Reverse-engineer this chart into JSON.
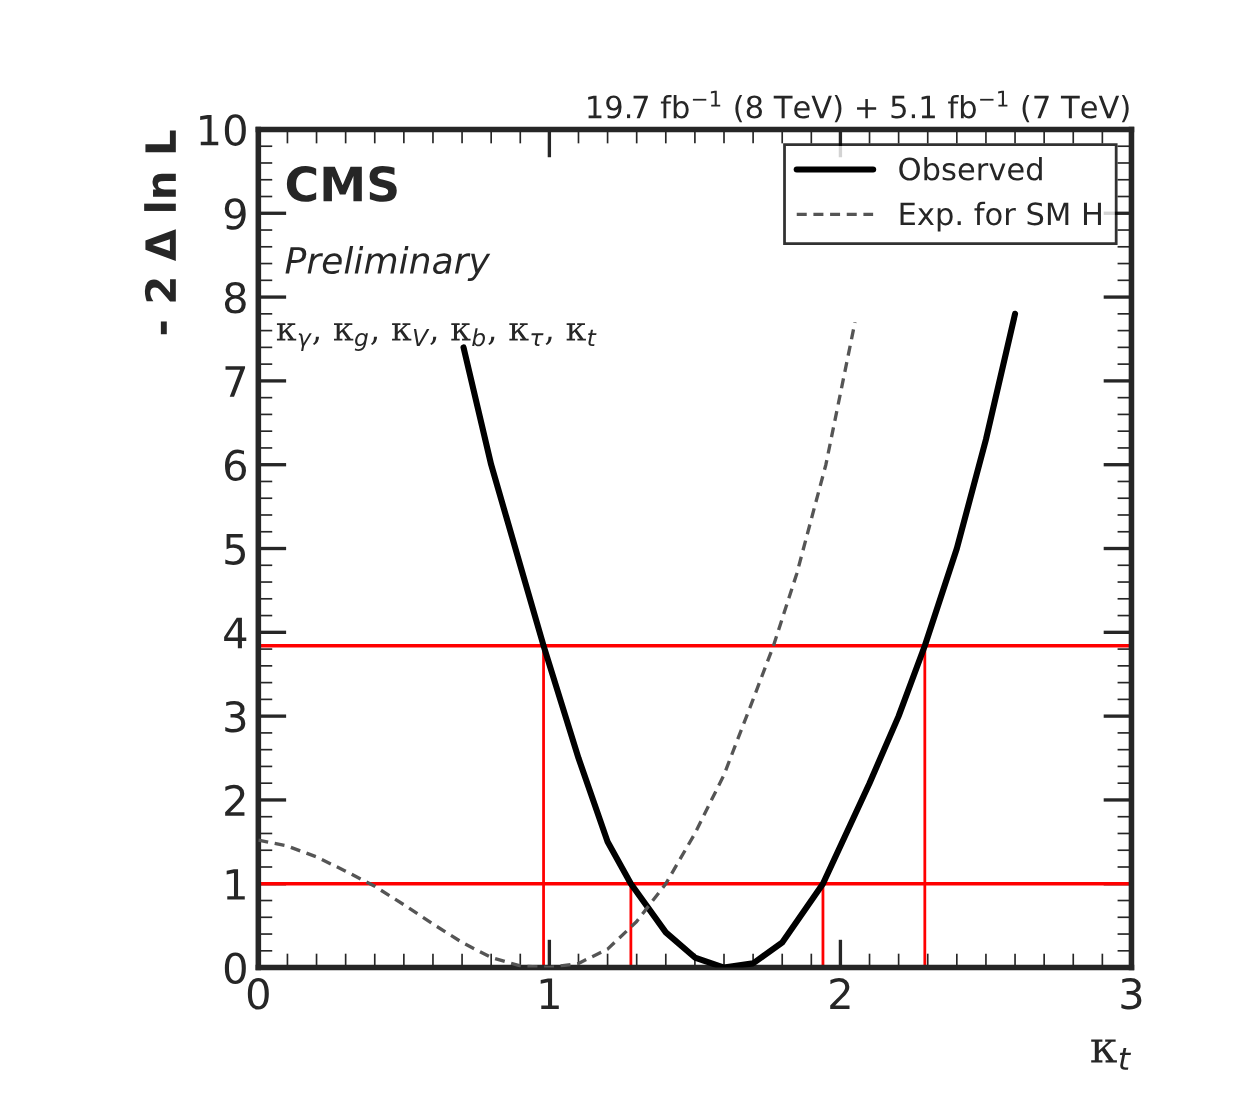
{
  "chart_data": {
    "type": "line",
    "title": "19.7 fb$^{−1}$ (8 TeV) + 5.1 fb$^{−1}$ (7 TeV)",
    "xlabel": "κ$_{t}$",
    "ylabel": "- 2 Δ ln L",
    "annotations": [
      "CMS",
      "Preliminary",
      "κ$_{γ}$, κ$_{g}$, κ$_{V}$, κ$_{b}$, κ$_{τ}$, κ$_{t}$"
    ],
    "series": [
      {
        "name": "Observed",
        "color": "#000000",
        "line_style": "solid",
        "x": [
          0.705,
          0.8,
          0.9,
          0.98,
          1.1,
          1.2,
          1.28,
          1.4,
          1.5,
          1.6,
          1.7,
          1.8,
          1.94,
          2.1,
          2.2,
          2.29,
          2.4,
          2.5,
          2.6
        ],
        "values": [
          7.4,
          6.0,
          4.8,
          3.84,
          2.5,
          1.5,
          1.0,
          0.42,
          0.12,
          0.0,
          0.05,
          0.3,
          1.0,
          2.2,
          3.0,
          3.84,
          5.0,
          6.3,
          7.8
        ]
      },
      {
        "name": "Exp. for SM H",
        "color": "#555555",
        "line_style": "dashed",
        "x": [
          0,
          0.1,
          0.2,
          0.3,
          0.4,
          0.5,
          0.6,
          0.7,
          0.8,
          0.9,
          1.0,
          1.1,
          1.2,
          1.3,
          1.4,
          1.5,
          1.6,
          1.7,
          1.77,
          1.85,
          1.95,
          2.05
        ],
        "values": [
          1.52,
          1.45,
          1.32,
          1.15,
          0.97,
          0.75,
          0.52,
          0.3,
          0.12,
          0.02,
          0.0,
          0.05,
          0.22,
          0.55,
          1.0,
          1.6,
          2.3,
          3.2,
          3.84,
          4.7,
          6.0,
          7.7
        ]
      },
      {
        "color": "#ff0000",
        "line_style": "solid",
        "x": [
          0.98,
          0.98
        ],
        "values": [
          0,
          3.84
        ]
      },
      {
        "color": "#ff0000",
        "line_style": "solid",
        "x": [
          1.28,
          1.28
        ],
        "values": [
          0,
          1.0
        ]
      },
      {
        "color": "#ff0000",
        "line_style": "solid",
        "x": [
          1.94,
          1.94
        ],
        "values": [
          0,
          1.0
        ]
      },
      {
        "color": "#ff0000",
        "line_style": "solid",
        "x": [
          2.29,
          2.29
        ],
        "values": [
          0,
          3.84
        ]
      }
    ],
    "ref_lines": [
      {
        "axis": "y",
        "value": 1.0,
        "color": "#ff0000"
      },
      {
        "axis": "y",
        "value": 3.84,
        "color": "#ff0000"
      }
    ],
    "xlim": [
      0,
      3
    ],
    "ylim": [
      0,
      10
    ],
    "xticks": [
      0,
      1,
      2,
      3
    ],
    "yticks": [
      0,
      1,
      2,
      3,
      4,
      5,
      6,
      7,
      8,
      9,
      10
    ],
    "grid": false,
    "legend": "top right"
  }
}
